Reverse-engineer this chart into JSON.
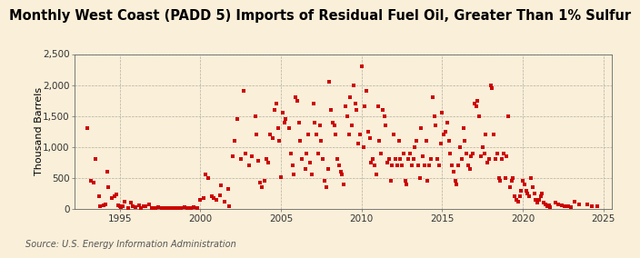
{
  "title": "Monthly West Coast (PADD 5) Imports of Residual Fuel Oil, Greater Than 1% Sulfur",
  "ylabel": "Thousand Barrels",
  "source": "Source: U.S. Energy Information Administration",
  "background_color": "#faefd9",
  "marker_color": "#cc0000",
  "ylim": [
    0,
    2500
  ],
  "yticks": [
    0,
    500,
    1000,
    1500,
    2000,
    2500
  ],
  "ytick_labels": [
    "0",
    "500",
    "1,000",
    "1,500",
    "2,000",
    "2,500"
  ],
  "xlim_start": 1992.2,
  "xlim_end": 2025.5,
  "xticks": [
    1995,
    2000,
    2005,
    2010,
    2015,
    2020,
    2025
  ],
  "title_fontsize": 10.5,
  "label_fontsize": 8,
  "tick_fontsize": 7.5,
  "source_fontsize": 7,
  "data": [
    [
      1993.0,
      1300
    ],
    [
      1993.2,
      450
    ],
    [
      1993.4,
      420
    ],
    [
      1993.5,
      800
    ],
    [
      1993.7,
      200
    ],
    [
      1993.8,
      50
    ],
    [
      1994.0,
      60
    ],
    [
      1994.1,
      80
    ],
    [
      1994.2,
      600
    ],
    [
      1994.3,
      350
    ],
    [
      1994.5,
      180
    ],
    [
      1994.7,
      200
    ],
    [
      1994.8,
      240
    ],
    [
      1994.9,
      60
    ],
    [
      1995.0,
      50
    ],
    [
      1995.1,
      30
    ],
    [
      1995.2,
      40
    ],
    [
      1995.3,
      120
    ],
    [
      1995.5,
      20
    ],
    [
      1995.7,
      100
    ],
    [
      1995.8,
      50
    ],
    [
      1996.0,
      30
    ],
    [
      1996.2,
      60
    ],
    [
      1996.3,
      20
    ],
    [
      1996.5,
      40
    ],
    [
      1996.6,
      50
    ],
    [
      1996.8,
      70
    ],
    [
      1997.0,
      10
    ],
    [
      1997.2,
      20
    ],
    [
      1997.4,
      30
    ],
    [
      1997.6,
      20
    ],
    [
      1997.8,
      10
    ],
    [
      1998.0,
      20
    ],
    [
      1998.2,
      10
    ],
    [
      1998.4,
      10
    ],
    [
      1998.6,
      10
    ],
    [
      1998.8,
      20
    ],
    [
      1999.0,
      30
    ],
    [
      1999.2,
      10
    ],
    [
      1999.4,
      10
    ],
    [
      1999.6,
      30
    ],
    [
      1999.8,
      20
    ],
    [
      2000.0,
      150
    ],
    [
      2000.2,
      180
    ],
    [
      2000.3,
      560
    ],
    [
      2000.5,
      500
    ],
    [
      2000.7,
      200
    ],
    [
      2000.8,
      180
    ],
    [
      2001.0,
      150
    ],
    [
      2001.2,
      220
    ],
    [
      2001.3,
      380
    ],
    [
      2001.5,
      120
    ],
    [
      2001.7,
      320
    ],
    [
      2001.8,
      50
    ],
    [
      2002.0,
      850
    ],
    [
      2002.1,
      1100
    ],
    [
      2002.3,
      1450
    ],
    [
      2002.5,
      800
    ],
    [
      2002.7,
      1900
    ],
    [
      2002.8,
      900
    ],
    [
      2003.0,
      700
    ],
    [
      2003.2,
      850
    ],
    [
      2003.4,
      1500
    ],
    [
      2003.5,
      1200
    ],
    [
      2003.6,
      780
    ],
    [
      2003.7,
      420
    ],
    [
      2003.8,
      350
    ],
    [
      2004.0,
      450
    ],
    [
      2004.1,
      800
    ],
    [
      2004.2,
      750
    ],
    [
      2004.3,
      1200
    ],
    [
      2004.5,
      1150
    ],
    [
      2004.6,
      1600
    ],
    [
      2004.7,
      1700
    ],
    [
      2004.8,
      1300
    ],
    [
      2004.9,
      1100
    ],
    [
      2005.0,
      520
    ],
    [
      2005.1,
      1550
    ],
    [
      2005.2,
      1400
    ],
    [
      2005.3,
      1450
    ],
    [
      2005.5,
      1300
    ],
    [
      2005.6,
      900
    ],
    [
      2005.7,
      700
    ],
    [
      2005.8,
      550
    ],
    [
      2005.9,
      1800
    ],
    [
      2006.0,
      1750
    ],
    [
      2006.1,
      1400
    ],
    [
      2006.2,
      1100
    ],
    [
      2006.3,
      800
    ],
    [
      2006.5,
      650
    ],
    [
      2006.6,
      900
    ],
    [
      2006.7,
      1200
    ],
    [
      2006.8,
      750
    ],
    [
      2006.9,
      550
    ],
    [
      2007.0,
      1700
    ],
    [
      2007.1,
      1400
    ],
    [
      2007.2,
      1200
    ],
    [
      2007.3,
      900
    ],
    [
      2007.4,
      1350
    ],
    [
      2007.5,
      1100
    ],
    [
      2007.6,
      800
    ],
    [
      2007.7,
      450
    ],
    [
      2007.8,
      350
    ],
    [
      2007.9,
      650
    ],
    [
      2008.0,
      2050
    ],
    [
      2008.1,
      1600
    ],
    [
      2008.2,
      1400
    ],
    [
      2008.3,
      1350
    ],
    [
      2008.4,
      1200
    ],
    [
      2008.5,
      800
    ],
    [
      2008.6,
      700
    ],
    [
      2008.7,
      600
    ],
    [
      2008.8,
      550
    ],
    [
      2008.9,
      400
    ],
    [
      2009.0,
      1650
    ],
    [
      2009.1,
      1500
    ],
    [
      2009.2,
      1200
    ],
    [
      2009.3,
      1800
    ],
    [
      2009.4,
      1350
    ],
    [
      2009.5,
      2000
    ],
    [
      2009.6,
      1700
    ],
    [
      2009.7,
      1600
    ],
    [
      2009.8,
      1050
    ],
    [
      2009.9,
      1200
    ],
    [
      2010.0,
      2300
    ],
    [
      2010.1,
      1000
    ],
    [
      2010.2,
      1650
    ],
    [
      2010.3,
      1900
    ],
    [
      2010.4,
      1250
    ],
    [
      2010.5,
      1150
    ],
    [
      2010.6,
      750
    ],
    [
      2010.7,
      800
    ],
    [
      2010.8,
      700
    ],
    [
      2010.9,
      550
    ],
    [
      2011.0,
      1650
    ],
    [
      2011.1,
      1100
    ],
    [
      2011.2,
      900
    ],
    [
      2011.3,
      1600
    ],
    [
      2011.4,
      1500
    ],
    [
      2011.5,
      1350
    ],
    [
      2011.6,
      750
    ],
    [
      2011.7,
      800
    ],
    [
      2011.8,
      450
    ],
    [
      2011.9,
      700
    ],
    [
      2012.0,
      1200
    ],
    [
      2012.1,
      800
    ],
    [
      2012.2,
      700
    ],
    [
      2012.3,
      1100
    ],
    [
      2012.4,
      800
    ],
    [
      2012.5,
      700
    ],
    [
      2012.6,
      900
    ],
    [
      2012.7,
      450
    ],
    [
      2012.8,
      400
    ],
    [
      2012.9,
      800
    ],
    [
      2013.0,
      900
    ],
    [
      2013.1,
      700
    ],
    [
      2013.2,
      800
    ],
    [
      2013.3,
      1000
    ],
    [
      2013.4,
      1100
    ],
    [
      2013.5,
      700
    ],
    [
      2013.6,
      500
    ],
    [
      2013.7,
      1300
    ],
    [
      2013.8,
      850
    ],
    [
      2013.9,
      700
    ],
    [
      2014.0,
      1100
    ],
    [
      2014.1,
      450
    ],
    [
      2014.2,
      700
    ],
    [
      2014.3,
      800
    ],
    [
      2014.4,
      1800
    ],
    [
      2014.5,
      1500
    ],
    [
      2014.6,
      1350
    ],
    [
      2014.7,
      800
    ],
    [
      2014.8,
      700
    ],
    [
      2014.9,
      1050
    ],
    [
      2015.0,
      1550
    ],
    [
      2015.1,
      1200
    ],
    [
      2015.2,
      1250
    ],
    [
      2015.3,
      1400
    ],
    [
      2015.4,
      1100
    ],
    [
      2015.5,
      900
    ],
    [
      2015.6,
      700
    ],
    [
      2015.7,
      600
    ],
    [
      2015.8,
      450
    ],
    [
      2015.9,
      400
    ],
    [
      2016.0,
      700
    ],
    [
      2016.1,
      1000
    ],
    [
      2016.2,
      800
    ],
    [
      2016.3,
      1300
    ],
    [
      2016.4,
      1100
    ],
    [
      2016.5,
      900
    ],
    [
      2016.6,
      700
    ],
    [
      2016.7,
      650
    ],
    [
      2016.8,
      850
    ],
    [
      2016.9,
      900
    ],
    [
      2017.0,
      1700
    ],
    [
      2017.1,
      1650
    ],
    [
      2017.2,
      1750
    ],
    [
      2017.3,
      1500
    ],
    [
      2017.4,
      850
    ],
    [
      2017.5,
      1000
    ],
    [
      2017.6,
      900
    ],
    [
      2017.7,
      1200
    ],
    [
      2017.8,
      750
    ],
    [
      2017.9,
      800
    ],
    [
      2018.0,
      2000
    ],
    [
      2018.1,
      1950
    ],
    [
      2018.2,
      1200
    ],
    [
      2018.3,
      800
    ],
    [
      2018.4,
      900
    ],
    [
      2018.5,
      500
    ],
    [
      2018.6,
      450
    ],
    [
      2018.7,
      800
    ],
    [
      2018.8,
      900
    ],
    [
      2018.9,
      500
    ],
    [
      2019.0,
      850
    ],
    [
      2019.1,
      1500
    ],
    [
      2019.2,
      350
    ],
    [
      2019.3,
      450
    ],
    [
      2019.4,
      500
    ],
    [
      2019.5,
      200
    ],
    [
      2019.6,
      150
    ],
    [
      2019.7,
      120
    ],
    [
      2019.8,
      200
    ],
    [
      2019.9,
      300
    ],
    [
      2020.0,
      450
    ],
    [
      2020.1,
      400
    ],
    [
      2020.2,
      300
    ],
    [
      2020.3,
      250
    ],
    [
      2020.4,
      200
    ],
    [
      2020.5,
      500
    ],
    [
      2020.6,
      350
    ],
    [
      2020.7,
      250
    ],
    [
      2020.8,
      150
    ],
    [
      2020.9,
      100
    ],
    [
      2021.0,
      150
    ],
    [
      2021.1,
      200
    ],
    [
      2021.2,
      250
    ],
    [
      2021.3,
      100
    ],
    [
      2021.4,
      80
    ],
    [
      2021.5,
      50
    ],
    [
      2021.6,
      60
    ],
    [
      2021.7,
      30
    ],
    [
      2022.0,
      100
    ],
    [
      2022.2,
      80
    ],
    [
      2022.4,
      60
    ],
    [
      2022.6,
      50
    ],
    [
      2022.8,
      40
    ],
    [
      2023.0,
      30
    ],
    [
      2023.2,
      120
    ],
    [
      2023.5,
      80
    ],
    [
      2024.0,
      80
    ],
    [
      2024.3,
      50
    ],
    [
      2024.6,
      50
    ]
  ]
}
